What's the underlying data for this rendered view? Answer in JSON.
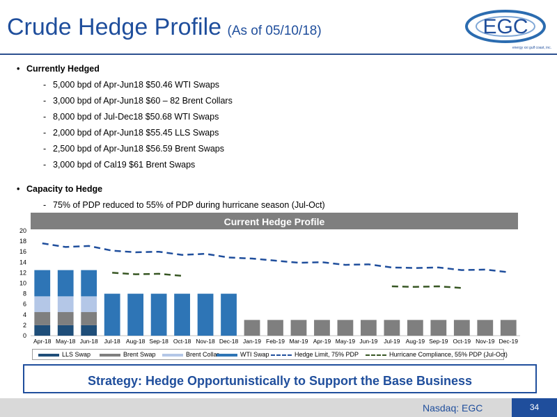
{
  "header": {
    "title": "Crude Hedge Profile",
    "subtitle": "(As of 05/10/18)"
  },
  "logo": {
    "text": "EGC",
    "tagline": "energy xxi gulf coast, inc."
  },
  "bullets": [
    {
      "heading": "Currently Hedged",
      "items": [
        "5,000 bpd of Apr-Jun18 $50.46 WTI Swaps",
        "3,000 bpd of Apr-Jun18 $60 – 82 Brent Collars",
        "8,000 bpd of Jul-Dec18 $50.68 WTI Swaps",
        "2,000 bpd of Apr-Jun18 $55.45 LLS Swaps",
        "2,500 bpd of Apr-Jun18 $56.59 Brent Swaps",
        "3,000 bpd of Cal19 $61 Brent Swaps"
      ]
    },
    {
      "heading": "Capacity to Hedge",
      "items": [
        "75% of PDP reduced to 55% of PDP during hurricane season (Jul-Oct)"
      ]
    }
  ],
  "chart_data": {
    "type": "bar",
    "title": "Current Hedge Profile",
    "stacked": true,
    "ylim": [
      0,
      20
    ],
    "yticks": [
      0,
      2,
      4,
      6,
      8,
      10,
      12,
      14,
      16,
      18,
      20
    ],
    "categories": [
      "Apr-18",
      "May-18",
      "Jun-18",
      "Jul-18",
      "Aug-18",
      "Sep-18",
      "Oct-18",
      "Nov-18",
      "Dec-18",
      "Jan-19",
      "Feb-19",
      "Mar-19",
      "Apr-19",
      "May-19",
      "Jun-19",
      "Jul-19",
      "Aug-19",
      "Sep-19",
      "Oct-19",
      "Nov-19",
      "Dec-19"
    ],
    "series": [
      {
        "name": "LLS Swap",
        "kind": "bar",
        "color": "#1f4e79",
        "values": [
          2,
          2,
          2,
          0,
          0,
          0,
          0,
          0,
          0,
          0,
          0,
          0,
          0,
          0,
          0,
          0,
          0,
          0,
          0,
          0,
          0
        ]
      },
      {
        "name": "Brent Swap",
        "kind": "bar",
        "color": "#7f7f7f",
        "values": [
          2.5,
          2.5,
          2.5,
          0,
          0,
          0,
          0,
          0,
          0,
          3,
          3,
          3,
          3,
          3,
          3,
          3,
          3,
          3,
          3,
          3,
          3
        ]
      },
      {
        "name": "Brent Collar",
        "kind": "bar",
        "color": "#b4c7e7",
        "values": [
          3,
          3,
          3,
          0,
          0,
          0,
          0,
          0,
          0,
          0,
          0,
          0,
          0,
          0,
          0,
          0,
          0,
          0,
          0,
          0,
          0
        ]
      },
      {
        "name": "WTI Swap",
        "kind": "bar",
        "color": "#2e75b6",
        "values": [
          5,
          5,
          5,
          8,
          8,
          8,
          8,
          8,
          8,
          0,
          0,
          0,
          0,
          0,
          0,
          0,
          0,
          0,
          0,
          0,
          0
        ]
      },
      {
        "name": "Hedge Limit, 75% PDP",
        "kind": "line",
        "color": "#1f4e9c",
        "values": [
          17.6,
          16.9,
          17.1,
          16.2,
          15.9,
          16.0,
          15.4,
          15.6,
          14.9,
          14.7,
          14.3,
          13.9,
          14.0,
          13.5,
          13.6,
          13.0,
          12.9,
          13.0,
          12.5,
          12.6,
          12.1
        ]
      },
      {
        "name": "Hurricane Compliance, 55% PDP (Jul-Oct)",
        "kind": "line",
        "color": "#375623",
        "values": [
          null,
          null,
          null,
          12.0,
          11.7,
          11.8,
          11.4,
          null,
          null,
          null,
          null,
          null,
          null,
          null,
          null,
          9.4,
          9.3,
          9.4,
          9.1,
          null,
          null
        ]
      }
    ]
  },
  "strategy": "Strategy: Hedge Opportunistically to Support the Base Business",
  "footer": {
    "ticker": "Nasdaq: EGC",
    "page": "34"
  }
}
